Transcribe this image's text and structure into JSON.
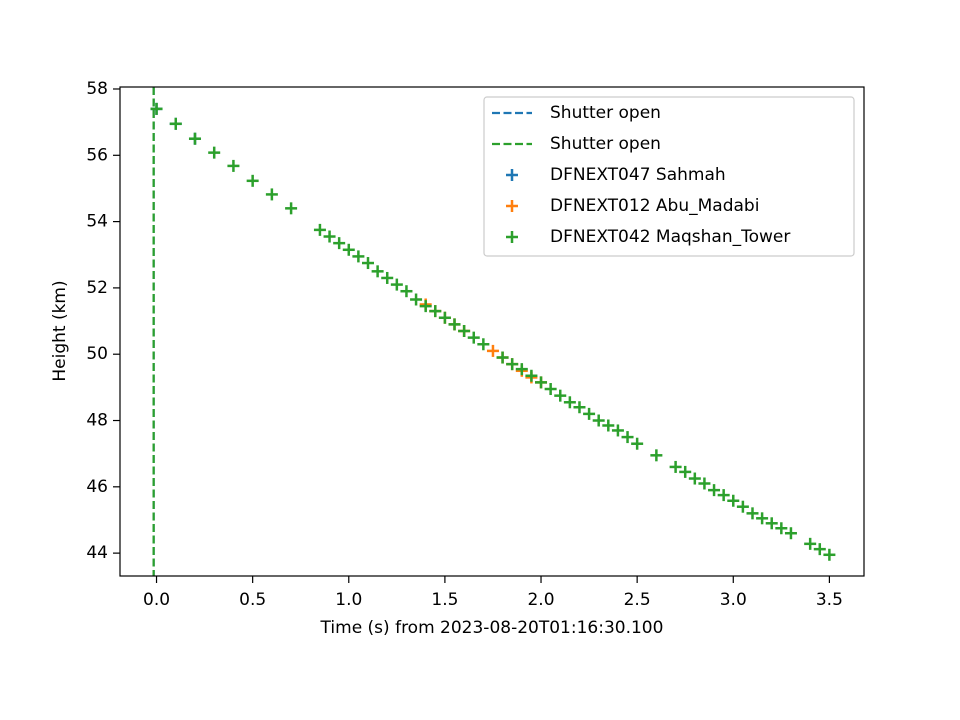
{
  "chart_data": {
    "type": "scatter",
    "xlabel": "Time (s) from 2023-08-20T01:16:30.100",
    "ylabel": "Height (km)",
    "xlim": [
      -0.19,
      3.68
    ],
    "ylim": [
      43.31,
      58.06
    ],
    "xticks": [
      {
        "value": 0,
        "label": "0.0"
      },
      0.5,
      {
        "value": 1,
        "label": "1.0"
      },
      1.5,
      {
        "value": 2,
        "label": "2.0"
      },
      2.5,
      {
        "value": 3,
        "label": "3.0"
      },
      3.5
    ],
    "yticks": [
      44,
      46,
      48,
      50,
      52,
      54,
      56,
      58
    ],
    "legend": "upper right",
    "vlines": [
      {
        "name": "Shutter open",
        "color": "#1f77b4",
        "x": -0.015
      },
      {
        "name": "Shutter open",
        "color": "#2ca02c",
        "x": -0.015
      }
    ],
    "series": [
      {
        "name": "DFNEXT047 Sahmah",
        "color": "#1f77b4",
        "x": [
          0.0,
          0.1,
          0.2
        ],
        "values": [
          57.4,
          56.95,
          56.5
        ]
      },
      {
        "name": "DFNEXT012 Abu_Madabi",
        "color": "#ff7f0e",
        "x": [
          1.4,
          1.45,
          1.5,
          1.55,
          1.6,
          1.75,
          1.8,
          1.85,
          1.9,
          1.95,
          2.0
        ],
        "values": [
          51.5,
          51.3,
          51.1,
          50.9,
          50.7,
          50.1,
          49.9,
          49.7,
          49.5,
          49.3,
          49.15
        ]
      },
      {
        "name": "DFNEXT042 Maqshan_Tower",
        "color": "#2ca02c",
        "x": [
          0.0,
          0.1,
          0.2,
          0.3,
          0.4,
          0.5,
          0.6,
          0.7,
          0.85,
          0.9,
          0.95,
          1.0,
          1.05,
          1.1,
          1.15,
          1.2,
          1.25,
          1.3,
          1.35,
          1.4,
          1.45,
          1.5,
          1.55,
          1.6,
          1.65,
          1.7,
          1.8,
          1.85,
          1.9,
          1.95,
          2.0,
          2.05,
          2.1,
          2.15,
          2.2,
          2.25,
          2.3,
          2.35,
          2.4,
          2.45,
          2.5,
          2.6,
          2.7,
          2.75,
          2.8,
          2.85,
          2.9,
          2.95,
          3.0,
          3.05,
          3.1,
          3.15,
          3.2,
          3.25,
          3.3,
          3.4,
          3.45,
          3.5
        ],
        "values": [
          57.4,
          56.95,
          56.5,
          56.08,
          55.68,
          55.23,
          54.82,
          54.4,
          53.75,
          53.55,
          53.35,
          53.15,
          52.95,
          52.75,
          52.5,
          52.3,
          52.1,
          51.9,
          51.65,
          51.45,
          51.3,
          51.1,
          50.9,
          50.7,
          50.5,
          50.3,
          49.9,
          49.7,
          49.55,
          49.35,
          49.15,
          48.95,
          48.75,
          48.55,
          48.4,
          48.2,
          48.0,
          47.85,
          47.7,
          47.5,
          47.3,
          46.95,
          46.6,
          46.45,
          46.25,
          46.1,
          45.9,
          45.75,
          45.58,
          45.4,
          45.2,
          45.05,
          44.9,
          44.75,
          44.6,
          44.28,
          44.12,
          43.95
        ]
      }
    ]
  }
}
